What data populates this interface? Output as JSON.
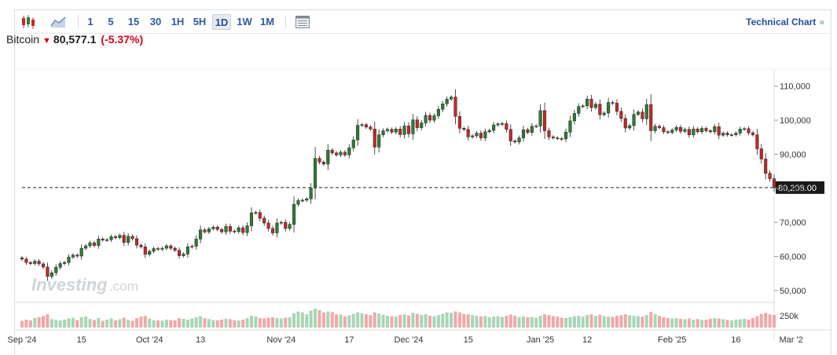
{
  "toolbar": {
    "icons": [
      "candlestick-icon",
      "area-chart-icon",
      "table-view-icon"
    ],
    "intervals": [
      {
        "label": "1",
        "active": false
      },
      {
        "label": "5",
        "active": false
      },
      {
        "label": "15",
        "active": false
      },
      {
        "label": "30",
        "active": false
      },
      {
        "label": "1H",
        "active": false
      },
      {
        "label": "5H",
        "active": false
      },
      {
        "label": "1D",
        "active": true
      },
      {
        "label": "1W",
        "active": false
      },
      {
        "label": "1M",
        "active": false
      }
    ],
    "technical_link": "Technical Chart",
    "technical_chevron": "»"
  },
  "quote": {
    "name": "Bitcoin",
    "last": "80,577.1",
    "change_pct": "(-5.37%)",
    "direction": "down"
  },
  "chart_data": {
    "type": "candlestick",
    "interval": "1D",
    "watermark": "Investing.com",
    "y_ticks": [
      "110,000",
      "100,000",
      "90,000",
      "80,000",
      "70,000",
      "60,000",
      "50,000"
    ],
    "y_tick_values": [
      110000,
      100000,
      90000,
      80000,
      70000,
      60000,
      50000
    ],
    "ylim": [
      46500,
      115000
    ],
    "volume_label": "250k",
    "x_ticks": [
      {
        "label": "Sep '24",
        "day": 0
      },
      {
        "label": "15",
        "day": 14
      },
      {
        "label": "Oct '24",
        "day": 30
      },
      {
        "label": "13",
        "day": 42
      },
      {
        "label": "Nov '24",
        "day": 61
      },
      {
        "label": "17",
        "day": 77
      },
      {
        "label": "Dec '24",
        "day": 91
      },
      {
        "label": "15",
        "day": 105
      },
      {
        "label": "Jan '25",
        "day": 122
      },
      {
        "label": "12",
        "day": 133
      },
      {
        "label": "Feb '25",
        "day": 153
      },
      {
        "label": "16",
        "day": 168
      },
      {
        "label": "Mar '2",
        "day": 181
      }
    ],
    "current_price_label": "80,208.00",
    "current_price": 80208,
    "colors": {
      "up": "#2e7d32",
      "down": "#c62828",
      "up_volume": "#a8d5b5",
      "down_volume": "#f2a7a7"
    },
    "closes": [
      59200,
      58200,
      57900,
      58600,
      57800,
      56900,
      54100,
      55200,
      56800,
      57900,
      58200,
      59800,
      60400,
      60100,
      62400,
      63100,
      64000,
      63200,
      65100,
      64800,
      64900,
      65800,
      65500,
      66200,
      64100,
      65900,
      65200,
      63300,
      62800,
      60600,
      61500,
      62300,
      62100,
      62400,
      63100,
      62400,
      61800,
      60200,
      60700,
      62800,
      63000,
      65100,
      67800,
      67200,
      68100,
      68600,
      67900,
      67200,
      68800,
      67400,
      67300,
      68400,
      67000,
      69000,
      72800,
      72900,
      71200,
      69800,
      68200,
      66900,
      69800,
      70000,
      68200,
      69400,
      75300,
      76400,
      76500,
      76900,
      80100,
      88800,
      87700,
      87100,
      91200,
      90400,
      89800,
      90600,
      89800,
      91900,
      94200,
      98500,
      98700,
      98000,
      97400,
      92100,
      95700,
      96900,
      97300,
      96500,
      97400,
      95800,
      98300,
      96000,
      100100,
      97800,
      99200,
      101400,
      100000,
      101300,
      103200,
      104800,
      106200,
      106800,
      101100,
      97600,
      97300,
      95100,
      95400,
      96200,
      94800,
      96600,
      97000,
      98600,
      98900,
      99000,
      97300,
      93900,
      93600,
      94800,
      97200,
      96400,
      98200,
      98300,
      102800,
      96900,
      95100,
      94800,
      94600,
      94500,
      96500,
      99800,
      102000,
      104000,
      104200,
      106200,
      103700,
      104700,
      101600,
      102100,
      105200,
      105000,
      102600,
      100500,
      97700,
      98400,
      101700,
      102400,
      100400,
      104600,
      96900,
      98200,
      97800,
      96600,
      96400,
      97100,
      97900,
      96700,
      97300,
      95700,
      97400,
      96600,
      97600,
      96900,
      96600,
      98100,
      95600,
      96200,
      95700,
      95700,
      96200,
      97400,
      97500,
      96300,
      95700,
      91600,
      88600,
      84400,
      82800,
      80208
    ],
    "volume_rel": [
      0.35,
      0.42,
      0.38,
      0.5,
      0.55,
      0.62,
      0.7,
      0.45,
      0.4,
      0.38,
      0.42,
      0.48,
      0.52,
      0.4,
      0.55,
      0.58,
      0.45,
      0.4,
      0.5,
      0.35,
      0.42,
      0.48,
      0.38,
      0.44,
      0.52,
      0.4,
      0.36,
      0.5,
      0.58,
      0.62,
      0.48,
      0.4,
      0.38,
      0.36,
      0.42,
      0.4,
      0.38,
      0.5,
      0.46,
      0.42,
      0.48,
      0.55,
      0.6,
      0.5,
      0.45,
      0.4,
      0.38,
      0.42,
      0.46,
      0.44,
      0.4,
      0.38,
      0.42,
      0.5,
      0.62,
      0.58,
      0.5,
      0.48,
      0.52,
      0.55,
      0.5,
      0.48,
      0.52,
      0.55,
      0.75,
      0.85,
      0.8,
      0.7,
      0.9,
      1.0,
      0.92,
      0.8,
      0.85,
      0.82,
      0.7,
      0.68,
      0.6,
      0.65,
      0.72,
      0.8,
      0.75,
      0.7,
      0.66,
      0.8,
      0.75,
      0.68,
      0.62,
      0.6,
      0.58,
      0.66,
      0.7,
      0.64,
      0.78,
      0.72,
      0.66,
      0.7,
      0.62,
      0.6,
      0.66,
      0.72,
      0.8,
      0.78,
      0.85,
      0.8,
      0.72,
      0.7,
      0.66,
      0.62,
      0.58,
      0.6,
      0.55,
      0.58,
      0.6,
      0.56,
      0.62,
      0.68,
      0.62,
      0.55,
      0.58,
      0.54,
      0.56,
      0.52,
      0.62,
      0.7,
      0.66,
      0.6,
      0.58,
      0.52,
      0.5,
      0.55,
      0.6,
      0.62,
      0.58,
      0.66,
      0.7,
      0.62,
      0.68,
      0.6,
      0.58,
      0.56,
      0.62,
      0.66,
      0.7,
      0.65,
      0.62,
      0.6,
      0.58,
      0.66,
      0.82,
      0.7,
      0.62,
      0.55,
      0.5,
      0.48,
      0.5,
      0.46,
      0.44,
      0.48,
      0.42,
      0.45,
      0.4,
      0.42,
      0.46,
      0.5,
      0.48,
      0.44,
      0.4,
      0.38,
      0.42,
      0.44,
      0.46,
      0.42,
      0.5,
      0.6,
      0.72,
      0.78,
      0.7,
      0.66
    ]
  }
}
